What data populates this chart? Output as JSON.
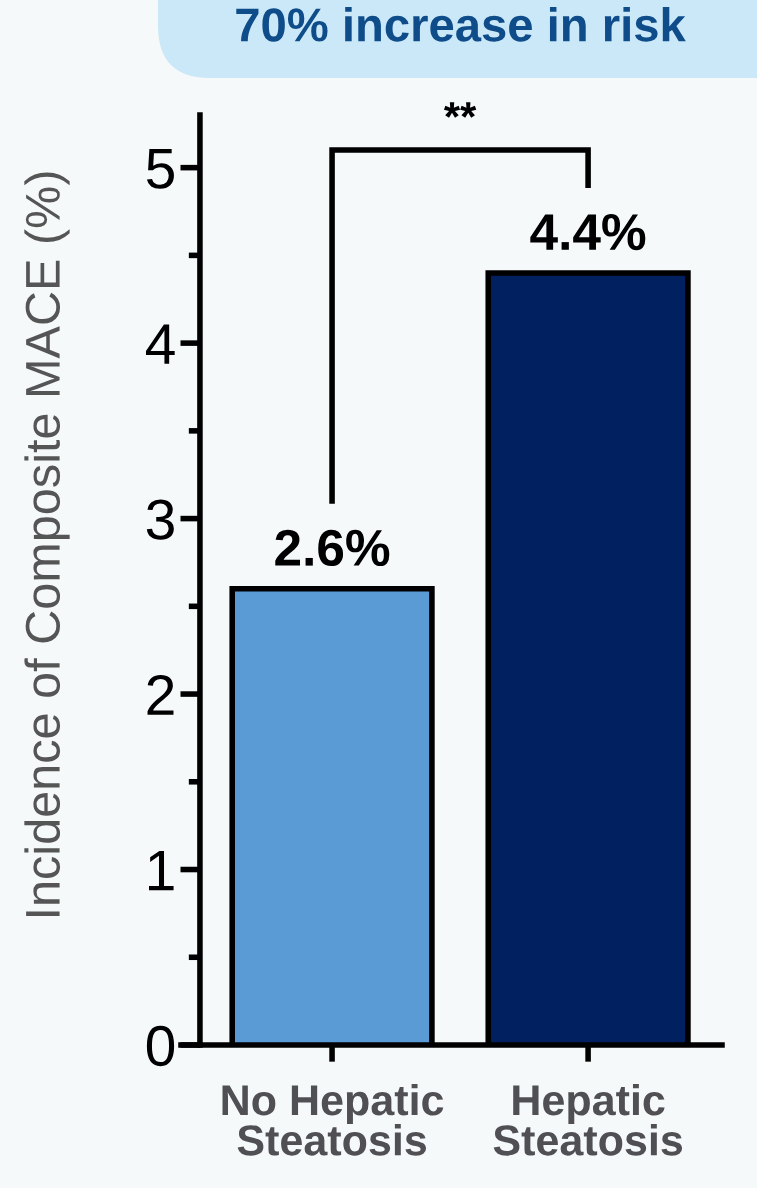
{
  "chart_data": {
    "type": "bar",
    "title": "70% increase in risk",
    "ylabel": "Incidence of Composite MACE (%)",
    "categories": [
      "No Hepatic\nSteatosis",
      "Hepatic\nSteatosis"
    ],
    "values": [
      2.6,
      4.4
    ],
    "colors": [
      "#5b9bd5",
      "#002060"
    ],
    "value_labels": [
      "2.6%",
      "4.4%"
    ],
    "ylim": [
      0,
      5.3
    ],
    "yticks": [
      0,
      {
        "value": 0.5,
        "label": null
      },
      1,
      {
        "value": 1.5,
        "label": null
      },
      2,
      {
        "value": 2.5,
        "label": null
      },
      3,
      {
        "value": 3.5,
        "label": null
      },
      4,
      {
        "value": 4.5,
        "label": null
      },
      5
    ],
    "annotations": [
      "**"
    ]
  }
}
